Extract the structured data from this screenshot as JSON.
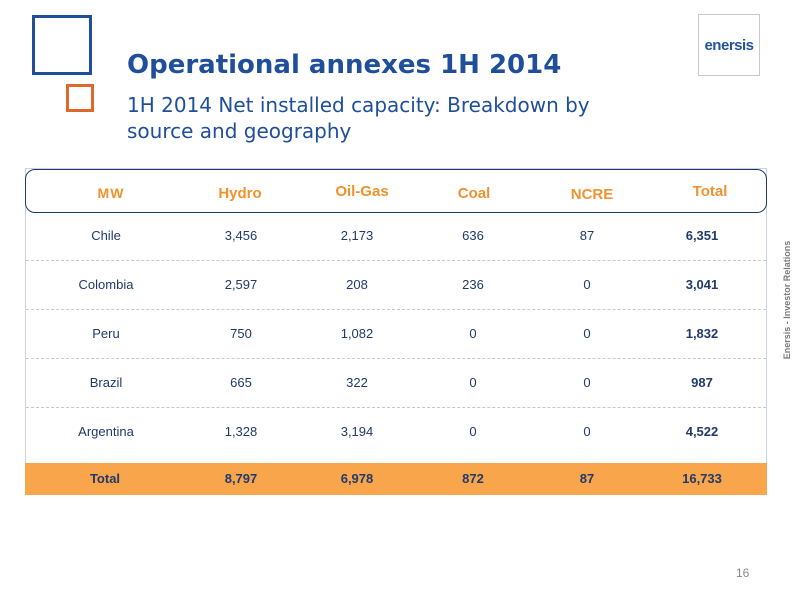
{
  "header": {
    "title": "Operational annexes 1H 2014",
    "subtitle": "1H 2014 Net installed capacity: Breakdown by source and geography",
    "logo": "enersis",
    "side_label": "Enersis - Investor Relations"
  },
  "table": {
    "columns": [
      "MW",
      "Hydro",
      "Oil-Gas",
      "Coal",
      "NCRE",
      "Total"
    ],
    "rows": [
      [
        "Chile",
        "3,456",
        "2,173",
        "636",
        "87",
        "6,351"
      ],
      [
        "Colombia",
        "2,597",
        "208",
        "236",
        "0",
        "3,041"
      ],
      [
        "Peru",
        "750",
        "1,082",
        "0",
        "0",
        "1,832"
      ],
      [
        "Brazil",
        "665",
        "322",
        "0",
        "0",
        "987"
      ],
      [
        "Argentina",
        "1,328",
        "3,194",
        "0",
        "0",
        "4,522"
      ]
    ],
    "total": [
      "Total",
      "8,797",
      "6,978",
      "872",
      "87",
      "16,733"
    ]
  },
  "footer": {
    "page_number": "16"
  },
  "colors": {
    "accent_blue": "#1f4e9a",
    "accent_orange": "#f0922e",
    "total_row_bg": "#f9a54b"
  }
}
